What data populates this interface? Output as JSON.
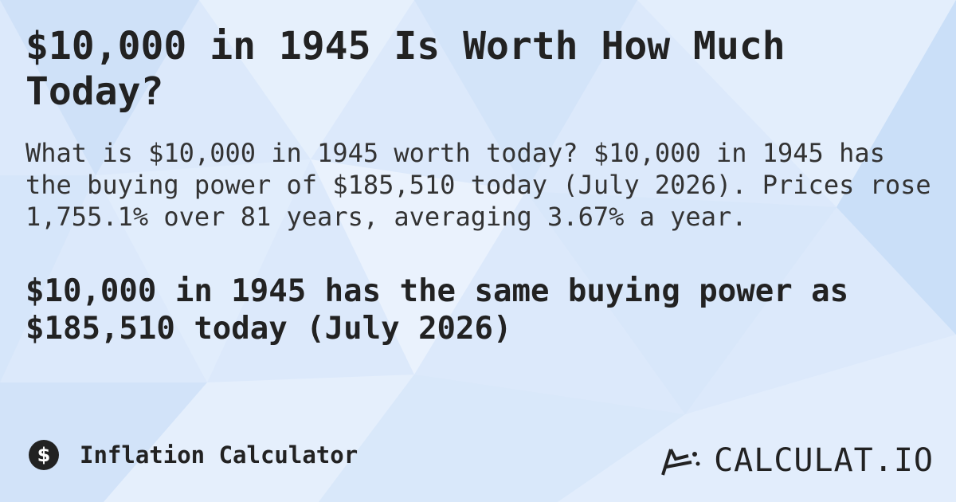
{
  "header": {
    "title": "$10,000 in 1945 Is Worth How Much Today?"
  },
  "description": "What is $10,000 in 1945 worth today? $10,000 in 1945 has the buying power of $185,510 today (July 2026). Prices rose 1,755.1% over 81 years, averaging 3.67% a year.",
  "highlight": "$10,000 in 1945 has the same buying power as $185,510 today (July 2026)",
  "footer": {
    "label": "Inflation Calculator",
    "icon": "$",
    "logo": "CALCULAT.IO"
  }
}
